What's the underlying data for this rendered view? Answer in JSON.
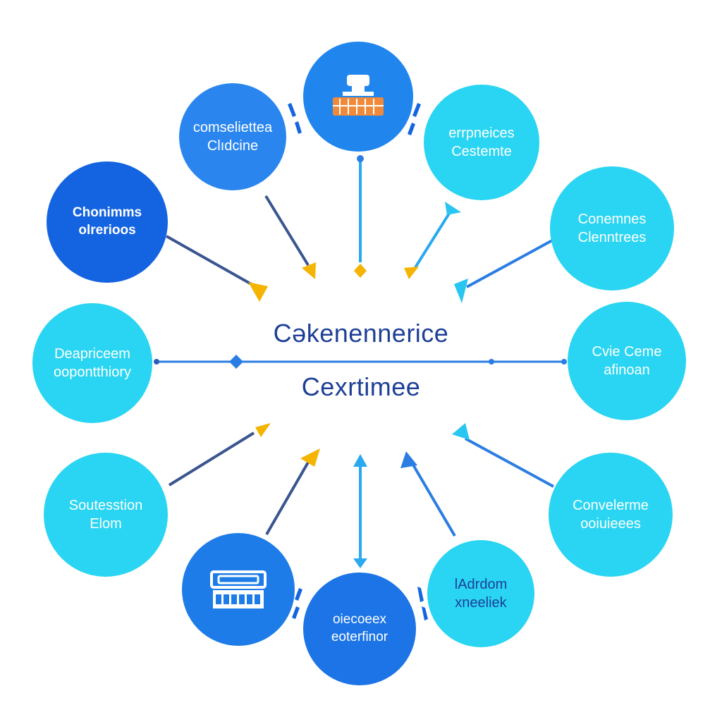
{
  "center": {
    "line1": "Cəkenennerice",
    "line2": "Cexrtimee"
  },
  "nodes": {
    "n_left_upper": {
      "line1": "Chonimms",
      "line2": "olrerioos"
    },
    "n_upper_left": {
      "line1": "comseliettea",
      "line2": "Clıdcine"
    },
    "n_top_icon": {
      "icon": "machine-icon"
    },
    "n_upper_right": {
      "line1": "errpneices",
      "line2": "Cestemte"
    },
    "n_right_upper": {
      "line1": "Conemnes",
      "line2": "Clenntrees"
    },
    "n_left": {
      "line1": "Deapriceem",
      "line2": "oopontthiory"
    },
    "n_right": {
      "line1": "Cvie Ceme",
      "line2": "afinoan"
    },
    "n_left_lower": {
      "line1": "Soutesstion",
      "line2": "Elom"
    },
    "n_right_lower": {
      "line1": "Convelerme",
      "line2": "ooiuieees"
    },
    "n_lower_left_icon": {
      "icon": "server-rack-icon"
    },
    "n_bottom": {
      "line1": "oiecoeex",
      "line2": "eoterfinor"
    },
    "n_lower_right": {
      "line1": "lAdrdom",
      "line2": "xneeliek"
    }
  },
  "colors": {
    "dark_blue": "#1565e0",
    "mid_blue": "#2f86ee",
    "cyan": "#28d4f0",
    "line_navy": "#3a5590",
    "line_blue": "#2b7de3",
    "arrow_yellow": "#f4b400",
    "arrow_cyan": "#29c6f2",
    "title_navy": "#1d3f96"
  }
}
